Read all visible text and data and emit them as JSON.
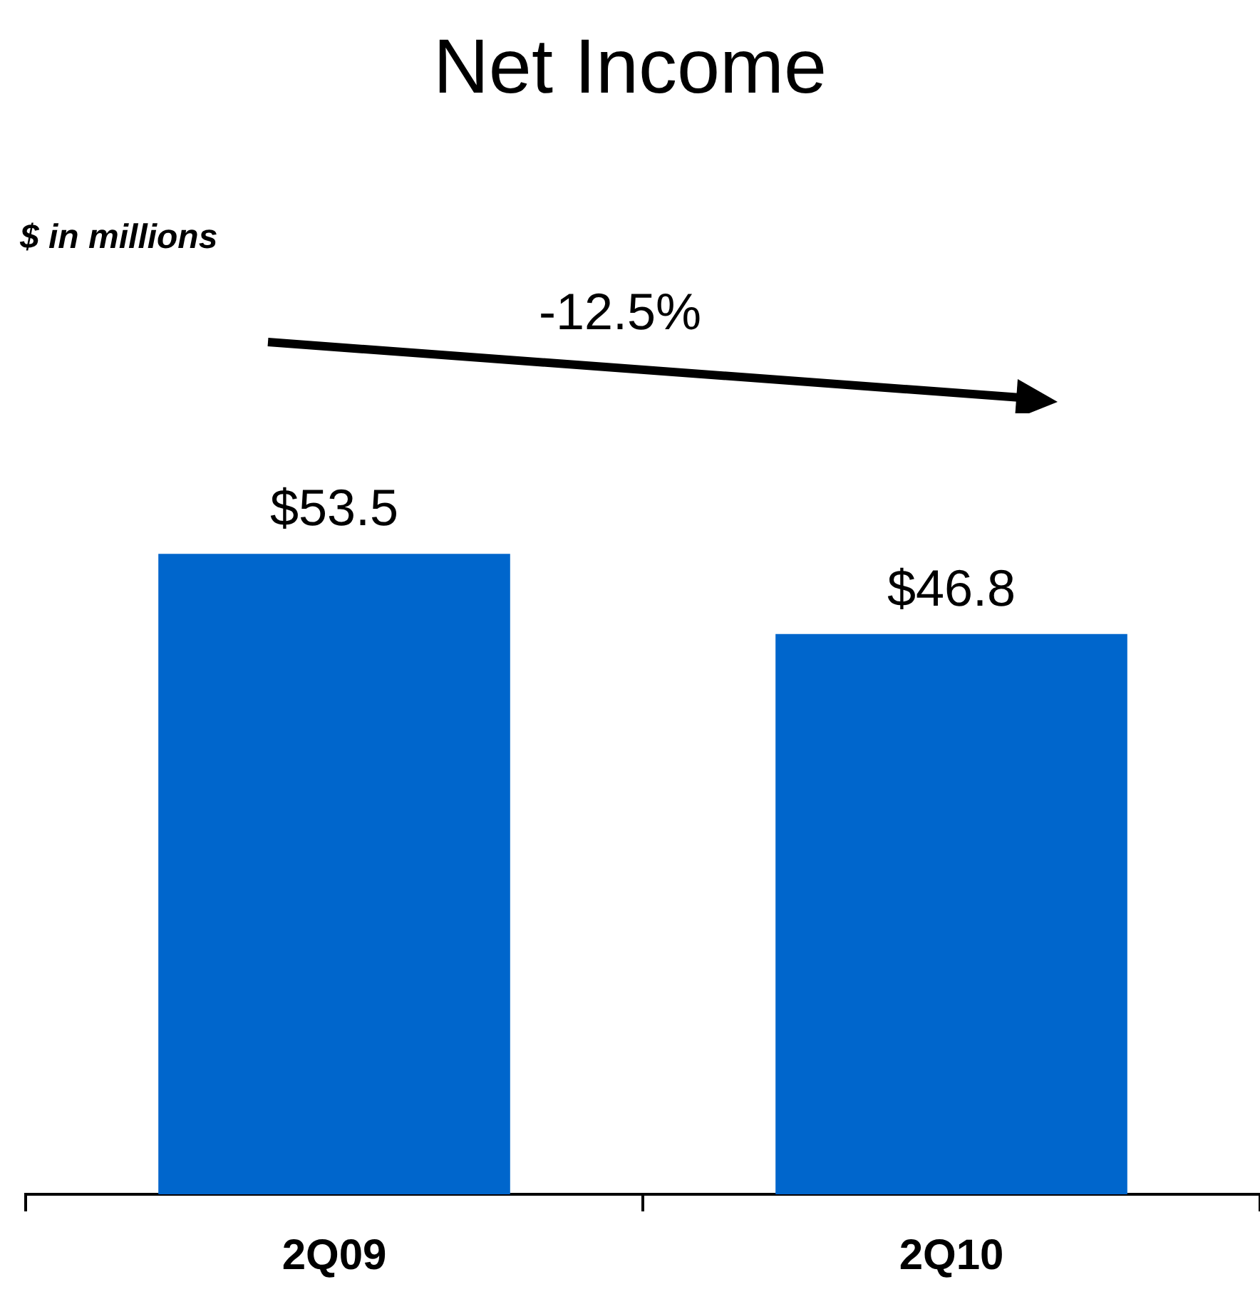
{
  "chart_data": {
    "type": "bar",
    "title": "Net Income",
    "categories": [
      "2Q09",
      "2Q10"
    ],
    "values": [
      53.5,
      46.8
    ],
    "value_labels": [
      "$53.5",
      "$46.8"
    ],
    "color": "#0066cc",
    "grid": false,
    "legend": false,
    "tick_labels": "x",
    "annotations": [
      "$ in millions",
      "-12.5%"
    ]
  }
}
